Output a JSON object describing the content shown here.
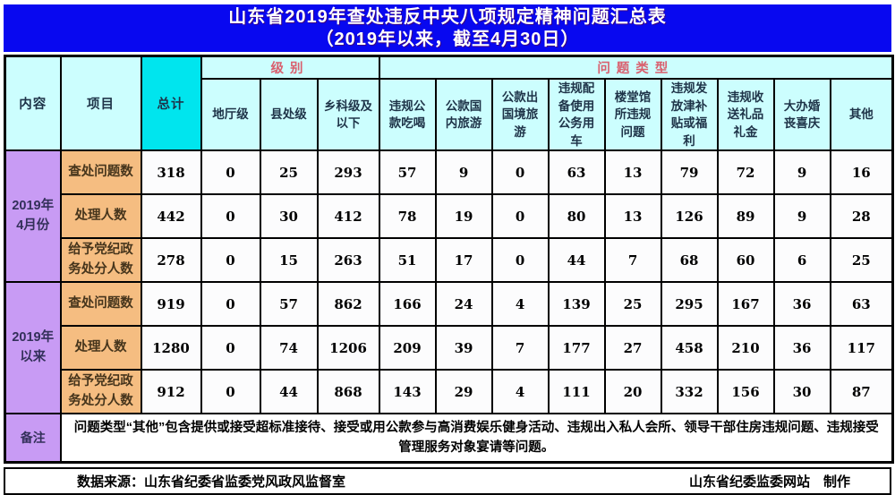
{
  "title": {
    "line1": "山东省2019年查处违反中央八项规定精神问题汇总表",
    "line2": "（2019年以来，截至4月30日）"
  },
  "colors": {
    "title_bg": "#0808f0",
    "title_text": "#ffffff",
    "header_bg": "#ccfefe",
    "total_bg": "#00e5ee",
    "period_bg": "#c89bf4",
    "row_label_bg": "#f5bd81",
    "cell_bg": "#fcfcfd",
    "group_header_text": "#d95f6e",
    "header_text": "#1e3348",
    "border": "#000000"
  },
  "table": {
    "corner_headers": [
      "内容",
      "项目",
      "总计"
    ],
    "group_headers": [
      {
        "label": "级别",
        "span": 3
      },
      {
        "label": "问题类型",
        "span": 9
      }
    ],
    "level_columns": [
      "地厅级",
      "县处级",
      "乡科级及以下"
    ],
    "type_columns": [
      "违规公款吃喝",
      "公款国内旅游",
      "公款出国境旅游",
      "违规配备使用公务用车",
      "楼堂馆所违规问题",
      "违规发放津补贴或福利",
      "违规收送礼品礼金",
      "大办婚丧喜庆",
      "其他"
    ],
    "groups": [
      {
        "period": "2019年4月份",
        "rows": [
          {
            "label": "查处问题数",
            "values": [
              318,
              0,
              25,
              293,
              57,
              9,
              0,
              63,
              13,
              79,
              72,
              9,
              16
            ]
          },
          {
            "label": "处理人数",
            "values": [
              442,
              0,
              30,
              412,
              78,
              19,
              0,
              80,
              13,
              126,
              89,
              9,
              28
            ]
          },
          {
            "label": "给予党纪政务处分人数",
            "values": [
              278,
              0,
              15,
              263,
              51,
              17,
              0,
              44,
              7,
              68,
              60,
              6,
              25
            ]
          }
        ]
      },
      {
        "period": "2019年以来",
        "rows": [
          {
            "label": "查处问题数",
            "values": [
              919,
              0,
              57,
              862,
              166,
              24,
              4,
              139,
              25,
              295,
              167,
              36,
              63
            ]
          },
          {
            "label": "处理人数",
            "values": [
              1280,
              0,
              74,
              1206,
              209,
              39,
              7,
              177,
              27,
              458,
              210,
              36,
              117
            ]
          },
          {
            "label": "给予党纪政务处分人数",
            "values": [
              912,
              0,
              44,
              868,
              143,
              29,
              4,
              111,
              20,
              332,
              156,
              30,
              87
            ]
          }
        ]
      }
    ],
    "remark": {
      "label": "备注",
      "text": "问题类型“其他”包含提供或接受超标准接待、接受或用公款参与高消费娱乐健身活动、违规出入私人会所、领导干部住房违规问题、违规接受管理服务对象宴请等问题。"
    }
  },
  "footer": {
    "source": "数据来源：山东省纪委省监委党风政风监督室",
    "credit": "山东省纪委监委网站　制作"
  }
}
